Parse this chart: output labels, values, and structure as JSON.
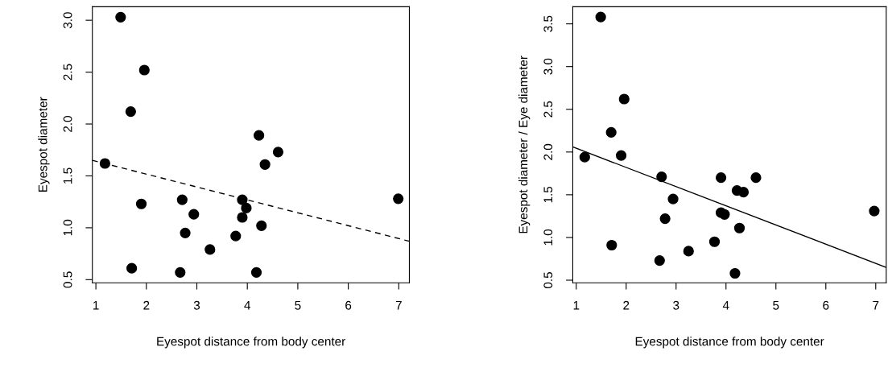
{
  "chart_data": [
    {
      "type": "scatter",
      "xlabel": "Eyespot distance from body center",
      "ylabel": "Eyespot diameter",
      "xlim": [
        0.93,
        7.21
      ],
      "ylim": [
        0.47,
        3.13
      ],
      "xticks": [
        1,
        2,
        3,
        4,
        5,
        6,
        7
      ],
      "yticks": [
        {
          "value": 0.5,
          "label": "0.5"
        },
        {
          "value": 1.0,
          "label": "1.0"
        },
        {
          "value": 1.5,
          "label": "1.5"
        },
        {
          "value": 2.0,
          "label": "2.0"
        },
        {
          "value": 2.5,
          "label": "2.5"
        },
        {
          "value": 3.0,
          "label": "3.0"
        }
      ],
      "grid": false,
      "marker": "circle",
      "series": [
        {
          "color": "#000000",
          "x": [
            1.49,
            1.96,
            1.69,
            1.18,
            4.23,
            4.61,
            4.35,
            1.9,
            2.71,
            3.9,
            3.98,
            2.94,
            3.9,
            4.28,
            2.77,
            3.77,
            3.26,
            1.71,
            2.67,
            4.18,
            6.99
          ],
          "values": [
            3.03,
            2.52,
            2.12,
            1.62,
            1.89,
            1.73,
            1.61,
            1.23,
            1.27,
            1.27,
            1.19,
            1.13,
            1.1,
            1.02,
            0.95,
            0.92,
            0.79,
            0.61,
            0.57,
            0.57,
            1.28
          ]
        },
        {
          "type": "line",
          "color": "#000000",
          "line_style": "dashed",
          "marker": "none",
          "x": [
            0.93,
            7.21
          ],
          "values": [
            1.65,
            0.87
          ]
        }
      ]
    },
    {
      "type": "scatter",
      "xlabel": "Eyespot distance from body center",
      "ylabel": "Eyespot diameter / Eye diameter",
      "xlim": [
        0.93,
        7.21
      ],
      "ylim": [
        0.47,
        3.7
      ],
      "xticks": [
        1,
        2,
        3,
        4,
        5,
        6,
        7
      ],
      "yticks": [
        {
          "value": 0.5,
          "label": "0.5"
        },
        {
          "value": 1.0,
          "label": "1.0"
        },
        {
          "value": 1.5,
          "label": "1.5"
        },
        {
          "value": 2.0,
          "label": "2.0"
        },
        {
          "value": 2.5,
          "label": "2.5"
        },
        {
          "value": 3.0,
          "label": "3.0"
        },
        {
          "value": 3.5,
          "label": "3.5"
        }
      ],
      "grid": false,
      "marker": "circle",
      "series": [
        {
          "color": "#000000",
          "x": [
            1.49,
            1.96,
            1.7,
            1.17,
            1.9,
            2.71,
            3.9,
            4.6,
            4.22,
            4.35,
            2.94,
            3.9,
            3.97,
            2.78,
            4.27,
            1.71,
            3.77,
            3.25,
            2.67,
            4.18,
            6.97
          ],
          "values": [
            3.58,
            2.62,
            2.23,
            1.94,
            1.96,
            1.71,
            1.7,
            1.7,
            1.55,
            1.53,
            1.45,
            1.29,
            1.27,
            1.22,
            1.11,
            0.91,
            0.95,
            0.84,
            0.73,
            0.58,
            1.31
          ]
        },
        {
          "type": "line",
          "color": "#000000",
          "line_style": "solid",
          "marker": "none",
          "x": [
            0.93,
            7.21
          ],
          "values": [
            2.06,
            0.65
          ]
        }
      ]
    }
  ]
}
